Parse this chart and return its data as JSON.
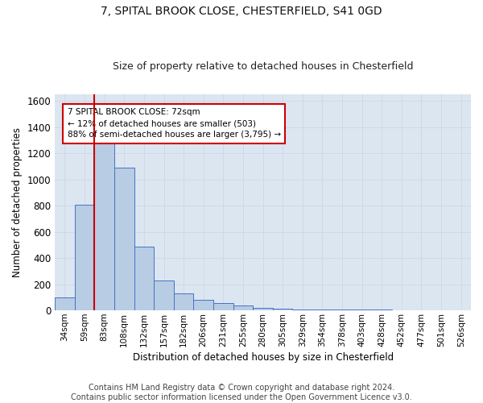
{
  "title_line1": "7, SPITAL BROOK CLOSE, CHESTERFIELD, S41 0GD",
  "title_line2": "Size of property relative to detached houses in Chesterfield",
  "xlabel": "Distribution of detached houses by size in Chesterfield",
  "ylabel": "Number of detached properties",
  "footer_line1": "Contains HM Land Registry data © Crown copyright and database right 2024.",
  "footer_line2": "Contains public sector information licensed under the Open Government Licence v3.0.",
  "annotation_line1": "7 SPITAL BROOK CLOSE: 72sqm",
  "annotation_line2": "← 12% of detached houses are smaller (503)",
  "annotation_line3": "88% of semi-detached houses are larger (3,795) →",
  "bar_color": "#b8cce4",
  "bar_edge_color": "#4472c4",
  "grid_color": "#d0d8e8",
  "background_color": "#dce6f1",
  "redline_color": "#cc0000",
  "annotation_box_color": "#cc0000",
  "categories": [
    "34sqm",
    "59sqm",
    "83sqm",
    "108sqm",
    "132sqm",
    "157sqm",
    "182sqm",
    "206sqm",
    "231sqm",
    "255sqm",
    "280sqm",
    "305sqm",
    "329sqm",
    "354sqm",
    "378sqm",
    "403sqm",
    "428sqm",
    "452sqm",
    "477sqm",
    "501sqm",
    "526sqm"
  ],
  "values": [
    100,
    810,
    1310,
    1090,
    490,
    230,
    130,
    80,
    55,
    40,
    20,
    15,
    10,
    10,
    5,
    5,
    5,
    3,
    3,
    3,
    3
  ],
  "ylim": [
    0,
    1650
  ],
  "yticks": [
    0,
    200,
    400,
    600,
    800,
    1000,
    1200,
    1400,
    1600
  ],
  "red_line_x": 1.5,
  "title_fontsize": 10,
  "subtitle_fontsize": 9,
  "footer_fontsize": 7
}
